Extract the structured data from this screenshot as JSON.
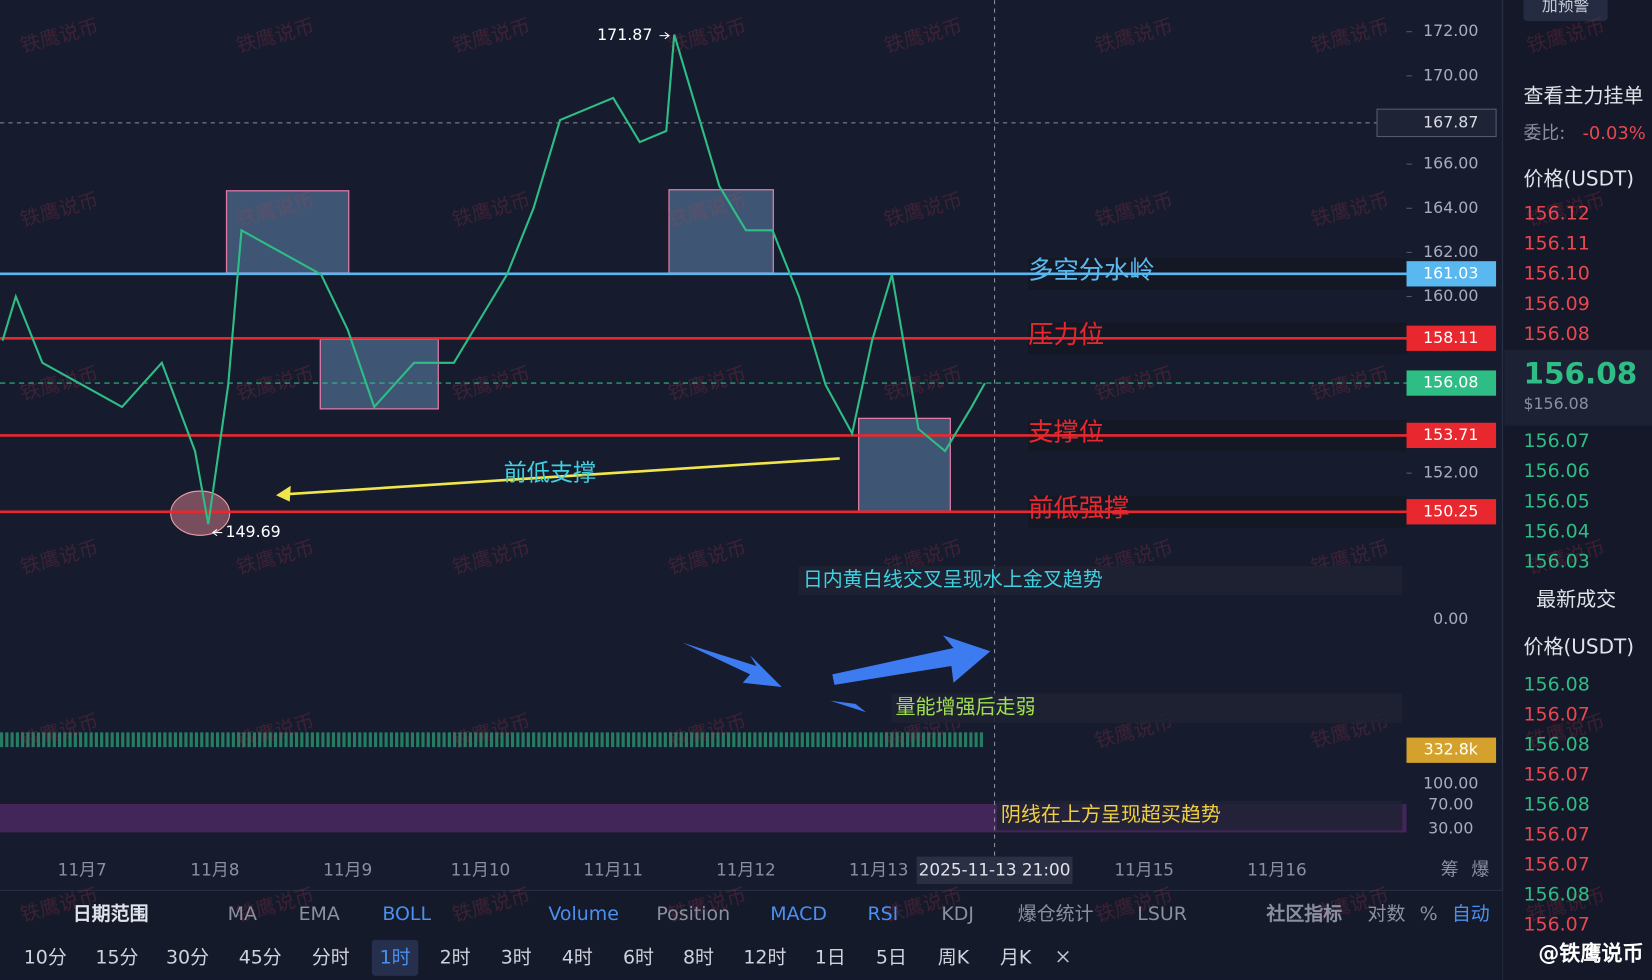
{
  "alert_button": "加预警",
  "chart": {
    "ylim": [
      150,
      172
    ],
    "price_ticks": [
      {
        "value": 172,
        "label": "172.00"
      },
      {
        "value": 170,
        "label": "170.00"
      },
      {
        "value": 166,
        "label": "166.00"
      },
      {
        "value": 164,
        "label": "164.00"
      },
      {
        "value": 162,
        "label": "162.00"
      },
      {
        "value": 160,
        "label": "160.00"
      },
      {
        "value": 152,
        "label": "152.00"
      }
    ],
    "crosshair_price": 167.87,
    "crosshair_time": "2025-11-13 21:00",
    "current_price": 156.08,
    "high": 171.87,
    "low": 149.69,
    "levels": [
      {
        "name": "多空分水岭",
        "value": 161.03,
        "color": "#5ab8f0"
      },
      {
        "name": "压力位",
        "value": 158.11,
        "color": "#e8282e"
      },
      {
        "name": "支撑位",
        "value": 153.71,
        "color": "#e8282e"
      },
      {
        "name": "前低强撑",
        "value": 150.25,
        "color": "#e8282e"
      }
    ],
    "dates": [
      "11月7",
      "11月8",
      "11月9",
      "11月10",
      "11月11",
      "11月12",
      "11月13",
      null,
      "11月15",
      "11月16"
    ],
    "price_path": {
      "x": [
        -0.6,
        -0.5,
        -0.3,
        0,
        0.3,
        0.6,
        0.85,
        0.95,
        1.1,
        1.2,
        1.5,
        1.8,
        2.0,
        2.2,
        2.5,
        2.8,
        3.0,
        3.2,
        3.4,
        3.6,
        4.0,
        4.2,
        4.4,
        4.46,
        4.8,
        5.0,
        5.2,
        5.4,
        5.6,
        5.8,
        5.95,
        6.1,
        6.3,
        6.5,
        6.7,
        6.8
      ],
      "values": [
        158,
        160,
        157,
        156,
        155,
        157,
        153,
        149.69,
        156,
        163,
        162,
        161,
        158.5,
        155,
        157,
        157,
        159,
        161,
        164,
        168,
        169,
        167,
        167.5,
        171.87,
        165,
        163,
        163,
        160,
        156,
        153.8,
        158,
        161,
        154,
        153,
        155,
        156.08
      ]
    },
    "annotations": [
      "前低支撑",
      "日内黄白线交叉呈现水上金叉趋势",
      "量能增强后走弱",
      "阴线在上方呈现超买趋势"
    ],
    "macd_axis": "0.00",
    "volume_label": "332.8k",
    "rsi_ticks": [
      "100.00",
      "70.00",
      "30.00"
    ],
    "side_labels": [
      "筹",
      "爆"
    ]
  },
  "indicator_bar": [
    {
      "label": "日期范围",
      "active": false
    },
    {
      "label": "MA",
      "active": false
    },
    {
      "label": "EMA",
      "active": false
    },
    {
      "label": "BOLL",
      "active": true
    },
    {
      "label": "Volume",
      "active": true
    },
    {
      "label": "Position",
      "active": false
    },
    {
      "label": "MACD",
      "active": true
    },
    {
      "label": "RSI",
      "active": true
    },
    {
      "label": "KDJ",
      "active": false
    },
    {
      "label": "爆仓统计",
      "active": false
    },
    {
      "label": "LSUR",
      "active": false
    },
    {
      "label": "社区指标",
      "active": false
    },
    {
      "label": "对数",
      "active": false
    },
    {
      "label": "%",
      "active": false
    },
    {
      "label": "自动",
      "active": true
    }
  ],
  "intervals": [
    {
      "label": "10分",
      "active": false
    },
    {
      "label": "15分",
      "active": false
    },
    {
      "label": "30分",
      "active": false
    },
    {
      "label": "45分",
      "active": false
    },
    {
      "label": "分时",
      "active": false
    },
    {
      "label": "1时",
      "active": true
    },
    {
      "label": "2时",
      "active": false
    },
    {
      "label": "3时",
      "active": false
    },
    {
      "label": "4时",
      "active": false
    },
    {
      "label": "6时",
      "active": false
    },
    {
      "label": "8时",
      "active": false
    },
    {
      "label": "12时",
      "active": false
    },
    {
      "label": "1日",
      "active": false
    },
    {
      "label": "5日",
      "active": false
    },
    {
      "label": "周K",
      "active": false
    },
    {
      "label": "月K",
      "active": false
    }
  ],
  "order_book": {
    "title": "查看主力挂单",
    "ratio_label": "委比:",
    "ratio": "-0.03%",
    "price_header": "价格(USDT)",
    "asks": [
      "156.12",
      "156.11",
      "156.10",
      "156.09",
      "156.08"
    ],
    "last": "156.08",
    "last_usd": "$156.08",
    "bids": [
      "156.07",
      "156.06",
      "156.05",
      "156.04",
      "156.03"
    ]
  },
  "trades": {
    "title": "最新成交",
    "price_header": "价格(USDT)",
    "rows": [
      {
        "price": "156.08",
        "side": "buy"
      },
      {
        "price": "156.07",
        "side": "sell"
      },
      {
        "price": "156.08",
        "side": "buy"
      },
      {
        "price": "156.07",
        "side": "sell"
      },
      {
        "price": "156.08",
        "side": "buy"
      },
      {
        "price": "156.07",
        "side": "sell"
      },
      {
        "price": "156.07",
        "side": "sell"
      },
      {
        "price": "156.08",
        "side": "buy"
      },
      {
        "price": "156.07",
        "side": "sell"
      }
    ]
  },
  "watermark": "铁鹰说币",
  "signature": "@铁鹰说币"
}
